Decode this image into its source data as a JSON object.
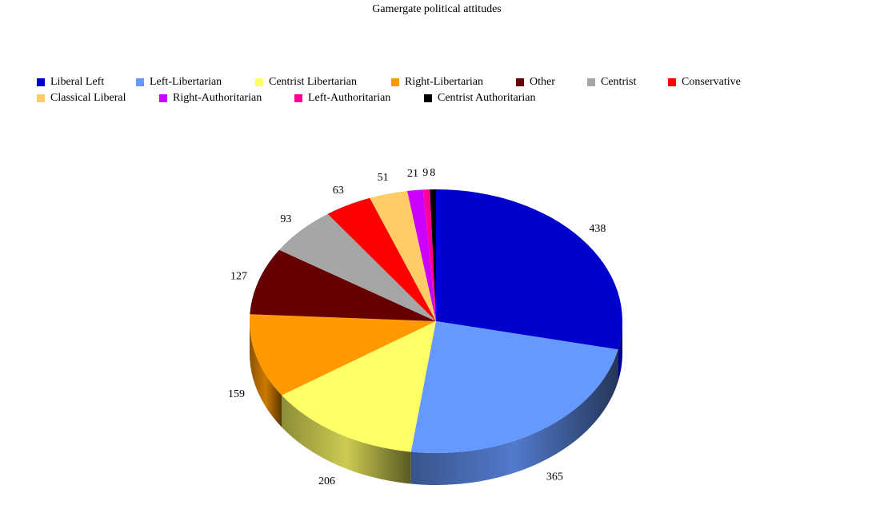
{
  "chart_data": {
    "type": "pie",
    "title": "Gamergate political attitudes",
    "style": "3d",
    "legend_position": "top",
    "categories": [
      "Liberal Left",
      "Left-Libertarian",
      "Centrist Libertarian",
      "Right-Libertarian",
      "Other",
      "Centrist",
      "Conservative",
      "Classical Liberal",
      "Right-Authoritarian",
      "Left-Authoritarian",
      "Centrist Authoritarian"
    ],
    "values": [
      438,
      365,
      206,
      159,
      127,
      93,
      63,
      51,
      21,
      9,
      8
    ],
    "data_labels": [
      "438",
      "365",
      "206",
      "159",
      "127",
      "93",
      "63",
      "51",
      "21",
      "9",
      "8"
    ],
    "colors": [
      "#0000CC",
      "#6699FF",
      "#FFFF66",
      "#FF9900",
      "#660000",
      "#A6A6A6",
      "#FF0000",
      "#FFCC66",
      "#CC00FF",
      "#FF0099",
      "#000000"
    ]
  }
}
